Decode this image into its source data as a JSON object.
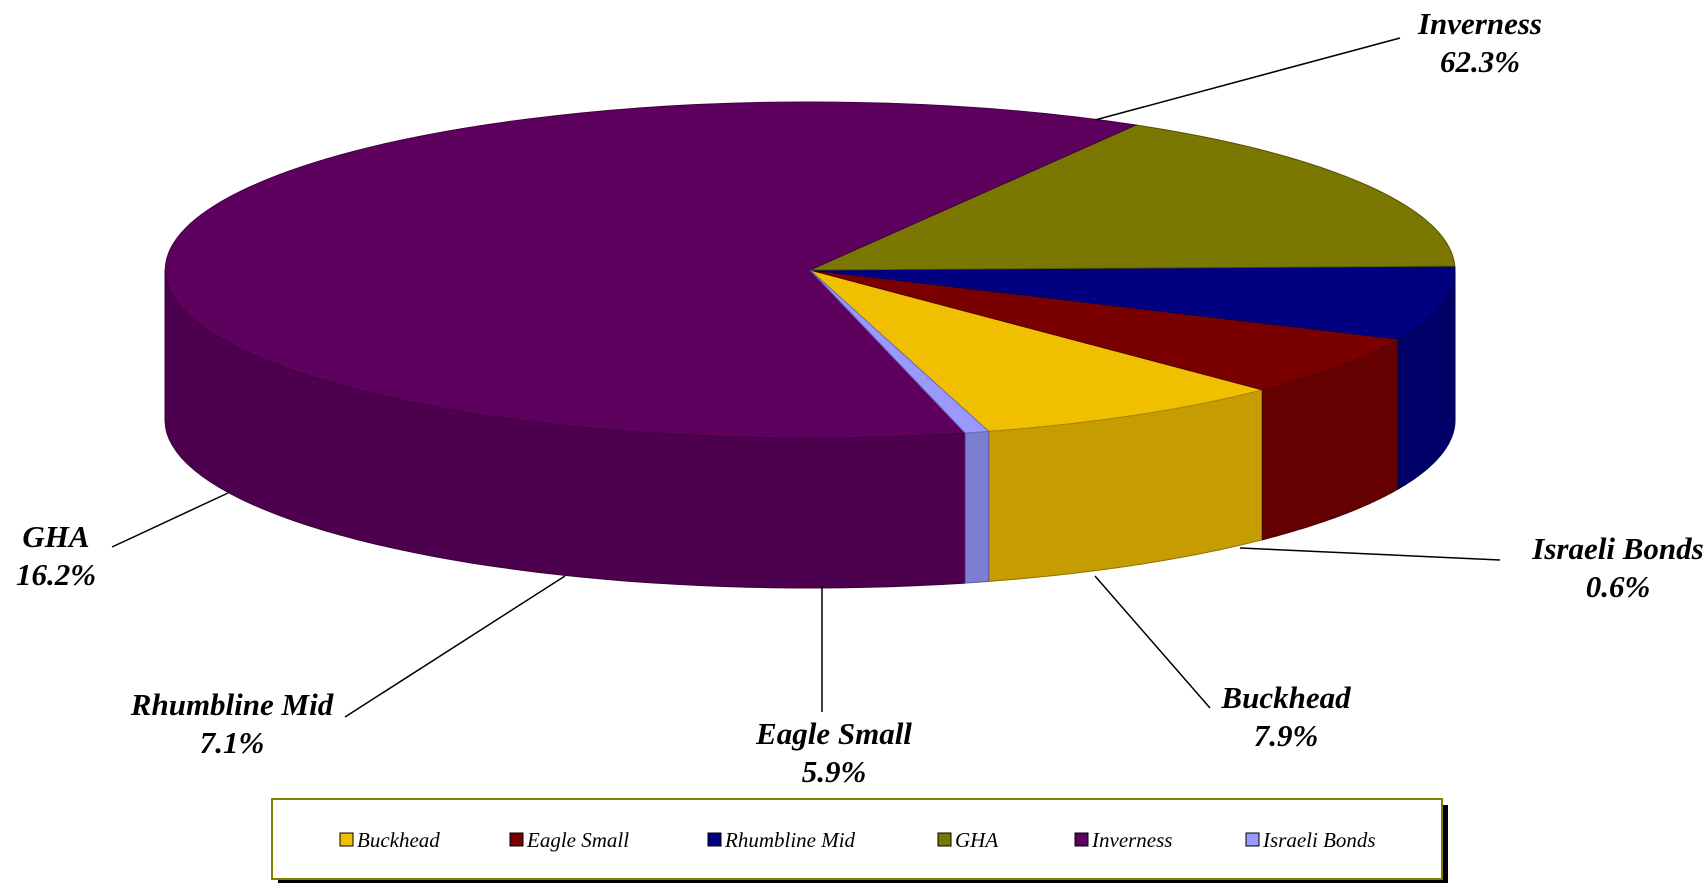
{
  "chart_data": {
    "type": "pie",
    "title": "",
    "style": "3d-pie",
    "legend_position": "bottom",
    "start_slice": "Buckhead",
    "slices": [
      {
        "label": "Buckhead",
        "value": 7.9,
        "value_label": "7.9%",
        "color": "#F0C000"
      },
      {
        "label": "Eagle Small",
        "value": 5.9,
        "value_label": "5.9%",
        "color": "#7A0000"
      },
      {
        "label": "Rhumbline Mid",
        "value": 7.1,
        "value_label": "7.1%",
        "color": "#000080"
      },
      {
        "label": "GHA",
        "value": 16.2,
        "value_label": "16.2%",
        "color": "#7A7800"
      },
      {
        "label": "Inverness",
        "value": 62.3,
        "value_label": "62.3%",
        "color": "#5E005E"
      },
      {
        "label": "Israeli Bonds",
        "value": 0.6,
        "value_label": "0.6%",
        "color": "#9999FF"
      }
    ]
  }
}
